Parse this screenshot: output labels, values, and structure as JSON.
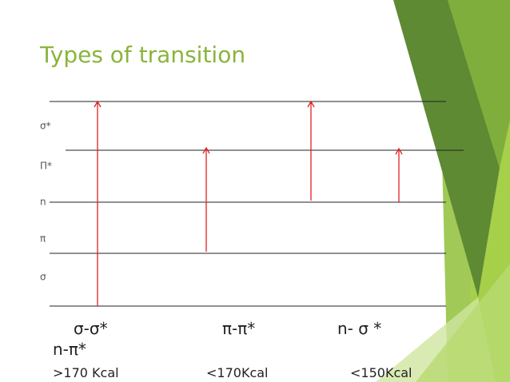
{
  "header": {
    "title": "Types of transition"
  },
  "levels": [
    "σ*",
    "Π*",
    "n",
    "π",
    "σ"
  ],
  "transitions": [
    {
      "label": "σ-σ*",
      "energy": ">170 Kcal"
    },
    {
      "label": "π-π*",
      "energy": "<170Kcal"
    },
    {
      "label": "n- σ *",
      "energy": "<150Kcal"
    },
    {
      "label": "n-π*"
    }
  ]
}
